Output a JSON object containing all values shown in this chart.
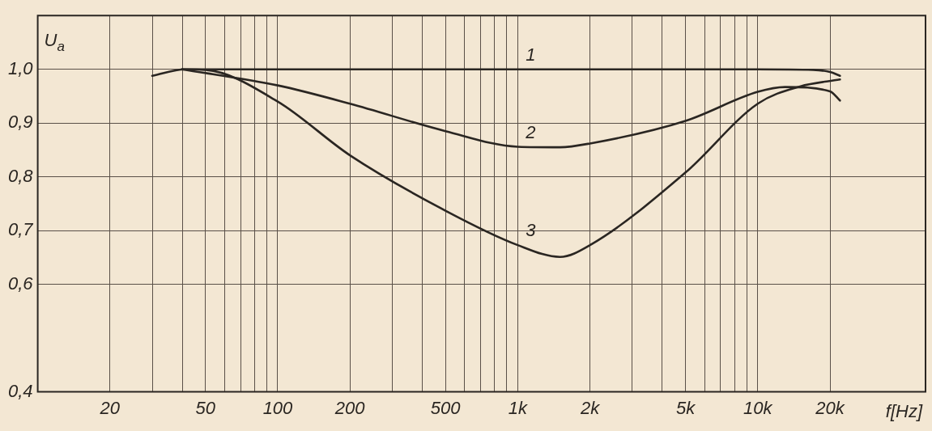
{
  "chart_data": {
    "type": "line",
    "xlabel": "f[Hz]",
    "ylabel": "U$_{a}$",
    "log": "x",
    "grid": true,
    "legend": false,
    "marker": "none",
    "line_style": "solid",
    "xlim": [
      10,
      50000
    ],
    "xticks": [
      {
        "value": 20,
        "label": "20"
      },
      {
        "value": 30,
        "label": null
      },
      {
        "value": 40,
        "label": null
      },
      {
        "value": 50,
        "label": "50"
      },
      {
        "value": 60,
        "label": null
      },
      {
        "value": 70,
        "label": null
      },
      {
        "value": 80,
        "label": null
      },
      {
        "value": 90,
        "label": null
      },
      {
        "value": 100,
        "label": "100"
      },
      {
        "value": 200,
        "label": "200"
      },
      {
        "value": 300,
        "label": null
      },
      {
        "value": 400,
        "label": null
      },
      {
        "value": 500,
        "label": "500"
      },
      {
        "value": 600,
        "label": null
      },
      {
        "value": 700,
        "label": null
      },
      {
        "value": 800,
        "label": null
      },
      {
        "value": 900,
        "label": null
      },
      {
        "value": 1000,
        "label": "1k"
      },
      {
        "value": 2000,
        "label": "2k"
      },
      {
        "value": 3000,
        "label": null
      },
      {
        "value": 4000,
        "label": null
      },
      {
        "value": 5000,
        "label": "5k"
      },
      {
        "value": 6000,
        "label": null
      },
      {
        "value": 7000,
        "label": null
      },
      {
        "value": 8000,
        "label": null
      },
      {
        "value": 9000,
        "label": null
      },
      {
        "value": 10000,
        "label": "10k"
      },
      {
        "value": 20000,
        "label": "20k"
      }
    ],
    "ylim": [
      0.4,
      1.1
    ],
    "yticks": [
      {
        "value": 0.4,
        "label": "0,4"
      },
      {
        "value": 0.6,
        "label": "0,6"
      },
      {
        "value": 0.7,
        "label": "0,7"
      },
      {
        "value": 0.8,
        "label": "0,8"
      },
      {
        "value": 0.9,
        "label": "0,9"
      },
      {
        "value": 1.0,
        "label": "1,0"
      }
    ],
    "series": [
      {
        "name": "1",
        "color": "#2a2622",
        "x": [
          30,
          41,
          100,
          1000,
          10000,
          17000,
          20000,
          22000
        ],
        "values": [
          0.988,
          1.0,
          1.0,
          1.0,
          1.0,
          0.999,
          0.995,
          0.988
        ]
      },
      {
        "name": "2",
        "color": "#2a2622",
        "x": [
          40,
          100,
          200,
          500,
          1000,
          1500,
          2000,
          5000,
          10000,
          13000,
          20000,
          22000
        ],
        "values": [
          1.0,
          0.97,
          0.936,
          0.885,
          0.856,
          0.855,
          0.862,
          0.904,
          0.958,
          0.967,
          0.959,
          0.942
        ]
      },
      {
        "name": "3",
        "color": "#2a2622",
        "x": [
          40,
          50,
          100,
          200,
          500,
          1000,
          1500,
          2000,
          5000,
          10000,
          15000,
          22000
        ],
        "values": [
          1.0,
          0.999,
          0.94,
          0.84,
          0.737,
          0.673,
          0.651,
          0.673,
          0.808,
          0.936,
          0.968,
          0.981
        ]
      }
    ]
  }
}
